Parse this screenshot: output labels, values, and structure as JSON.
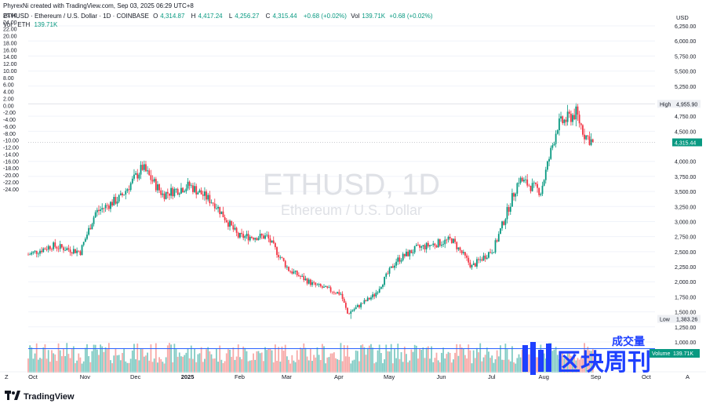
{
  "header": {
    "created_by": "PhyrexNi created with TradingView.com, Sep 03, 2025 06:29 UTC+8",
    "symbol_line": "ETHUSD · Ethereum / U.S. Dollar · 1D · COINBASE",
    "ohlc": {
      "o_label": "O",
      "o": "4,314.87",
      "h_label": "H",
      "h": "4,417.24",
      "l_label": "L",
      "l": "4,256.27",
      "c_label": "C",
      "c": "4,315.44",
      "chg": "+0.68 (+0.02%)"
    },
    "vol_line_1": "Vol",
    "vol_value_1": "139.71K",
    "vol_change": "+0.68 (+0.02%)",
    "vol_line_2": "Vol · ETH",
    "vol_value_2": "139.71K"
  },
  "watermark": {
    "title": "ETHUSD, 1D",
    "subtitle": "Ethereum / U.S. Dollar"
  },
  "right_axis": {
    "currency": "USD",
    "ticks": [
      "6,250.00",
      "6,000.00",
      "5,750.00",
      "5,500.00",
      "5,250.00",
      "4,750.00",
      "4,500.00",
      "4,000.00",
      "3,750.00",
      "3,500.00",
      "3,250.00",
      "3,000.00",
      "2,750.00",
      "2,500.00",
      "2,250.00",
      "2,000.00",
      "1,750.00",
      "1,500.00",
      "1,250.00",
      "1,000.00"
    ],
    "high_label": "High",
    "high_value": "4,955.90",
    "current_value": "4,315.44",
    "low_label": "Low",
    "low_value": "1,383.26",
    "volume_label": "Volume",
    "volume_value": "139.71K"
  },
  "left_axis": {
    "ticks": [
      "26.00",
      "24.00",
      "22.00",
      "20.00",
      "18.00",
      "16.00",
      "14.00",
      "12.00",
      "10.00",
      "8.00",
      "6.00",
      "4.00",
      "2.00",
      "0.00",
      "-2.00",
      "-4.00",
      "-6.00",
      "-8.00",
      "-10.00",
      "-12.00",
      "-14.00",
      "-16.00",
      "-18.00",
      "-20.00",
      "-22.00",
      "-24.00"
    ]
  },
  "x_axis": {
    "labels": [
      "Oct",
      "Nov",
      "Dec",
      "2025",
      "Feb",
      "Mar",
      "Apr",
      "May",
      "Jun",
      "Jul",
      "Aug",
      "Sep",
      "Oct"
    ],
    "bold_label": "2025"
  },
  "corner_labels": {
    "left": "Z",
    "right": "A"
  },
  "footer": {
    "brand": "TradingView"
  },
  "overlay_logo": {
    "top": "成交量",
    "main": "区块周刊"
  },
  "colors": {
    "up": "#089981",
    "down": "#f23645",
    "vol_up": "#80cbc4",
    "vol_down": "#f7a9a7",
    "line": "#2962ff",
    "grid": "#f0f3fa"
  },
  "chart_data": {
    "type": "candlestick",
    "title": "ETHUSD, 1D",
    "x_range": [
      "2024-10-01",
      "2025-10-09"
    ],
    "y_range": [
      900,
      6400
    ],
    "high": 4955.9,
    "low": 1383.26,
    "last_close": 4315.44,
    "monthly_path": [
      {
        "date": "2024-10-01",
        "close": 2450
      },
      {
        "date": "2024-10-15",
        "close": 2600
      },
      {
        "date": "2024-11-01",
        "close": 2500
      },
      {
        "date": "2024-11-10",
        "close": 3150
      },
      {
        "date": "2024-11-25",
        "close": 3400
      },
      {
        "date": "2024-12-08",
        "close": 3900
      },
      {
        "date": "2024-12-20",
        "close": 3450
      },
      {
        "date": "2025-01-05",
        "close": 3600
      },
      {
        "date": "2025-01-20",
        "close": 3300
      },
      {
        "date": "2025-02-03",
        "close": 2750
      },
      {
        "date": "2025-02-20",
        "close": 2750
      },
      {
        "date": "2025-03-05",
        "close": 2200
      },
      {
        "date": "2025-03-20",
        "close": 1950
      },
      {
        "date": "2025-04-05",
        "close": 1800
      },
      {
        "date": "2025-04-09",
        "close": 1470
      },
      {
        "date": "2025-04-25",
        "close": 1780
      },
      {
        "date": "2025-05-08",
        "close": 2350
      },
      {
        "date": "2025-05-20",
        "close": 2550
      },
      {
        "date": "2025-06-10",
        "close": 2700
      },
      {
        "date": "2025-06-22",
        "close": 2250
      },
      {
        "date": "2025-07-05",
        "close": 2550
      },
      {
        "date": "2025-07-20",
        "close": 3700
      },
      {
        "date": "2025-08-02",
        "close": 3500
      },
      {
        "date": "2025-08-12",
        "close": 4600
      },
      {
        "date": "2025-08-23",
        "close": 4800
      },
      {
        "date": "2025-08-28",
        "close": 4450
      },
      {
        "date": "2025-09-02",
        "close": 4315
      }
    ],
    "volume_reference": "139.71K"
  }
}
